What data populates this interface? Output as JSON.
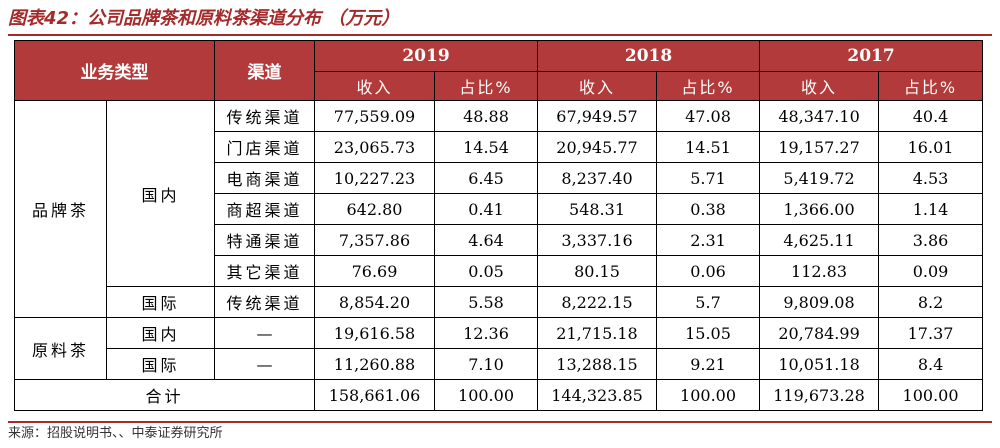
{
  "title": "图表42：公司品牌茶和原料茶渠道分布 （万元）",
  "headers": {
    "business_type": "业务类型",
    "channel": "渠道",
    "years": [
      "2019",
      "2018",
      "2017"
    ],
    "revenue": "收入",
    "share": "占比%"
  },
  "groups": {
    "brand_tea": "品牌茶",
    "raw_tea": "原料茶",
    "domestic": "国内",
    "international": "国际",
    "total": "合计"
  },
  "rows": [
    {
      "channel": "传统渠道",
      "r2019": "77,559.09",
      "s2019": "48.88",
      "r2018": "67,949.57",
      "s2018": "47.08",
      "r2017": "48,347.10",
      "s2017": "40.4"
    },
    {
      "channel": "门店渠道",
      "r2019": "23,065.73",
      "s2019": "14.54",
      "r2018": "20,945.77",
      "s2018": "14.51",
      "r2017": "19,157.27",
      "s2017": "16.01"
    },
    {
      "channel": "电商渠道",
      "r2019": "10,227.23",
      "s2019": "6.45",
      "r2018": "8,237.40",
      "s2018": "5.71",
      "r2017": "5,419.72",
      "s2017": "4.53"
    },
    {
      "channel": "商超渠道",
      "r2019": "642.80",
      "s2019": "0.41",
      "r2018": "548.31",
      "s2018": "0.38",
      "r2017": "1,366.00",
      "s2017": "1.14"
    },
    {
      "channel": "特通渠道",
      "r2019": "7,357.86",
      "s2019": "4.64",
      "r2018": "3,337.16",
      "s2018": "2.31",
      "r2017": "4,625.11",
      "s2017": "3.86"
    },
    {
      "channel": "其它渠道",
      "r2019": "76.69",
      "s2019": "0.05",
      "r2018": "80.15",
      "s2018": "0.06",
      "r2017": "112.83",
      "s2017": "0.09"
    },
    {
      "channel": "传统渠道",
      "r2019": "8,854.20",
      "s2019": "5.58",
      "r2018": "8,222.15",
      "s2018": "5.7",
      "r2017": "9,809.08",
      "s2017": "8.2"
    },
    {
      "channel": "—",
      "r2019": "19,616.58",
      "s2019": "12.36",
      "r2018": "21,715.18",
      "s2018": "15.05",
      "r2017": "20,784.99",
      "s2017": "17.37"
    },
    {
      "channel": "—",
      "r2019": "11,260.88",
      "s2019": "7.10",
      "r2018": "13,288.15",
      "s2018": "9.21",
      "r2017": "10,051.18",
      "s2017": "8.4"
    },
    {
      "channel": "",
      "r2019": "158,661.06",
      "s2019": "100.00",
      "r2018": "144,323.85",
      "s2018": "100.00",
      "r2017": "119,673.28",
      "s2017": "100.00"
    }
  ],
  "footer": "来源：招股说明书、、中泰证券研究所"
}
